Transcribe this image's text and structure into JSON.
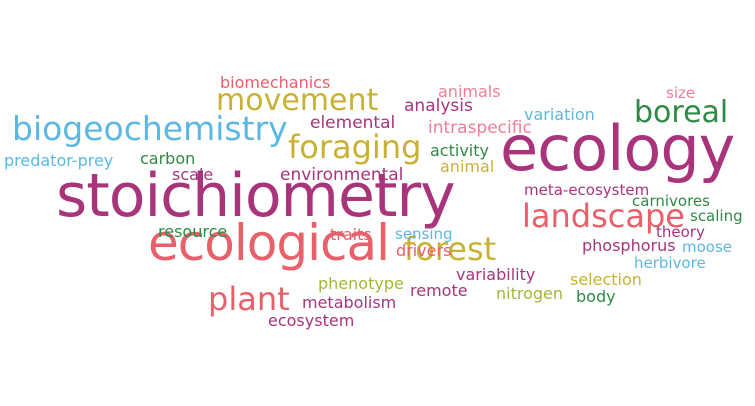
{
  "colors": {
    "magenta": "#a8347c",
    "coral": "#e8606a",
    "gold": "#c9b233",
    "sky": "#5bb8e3",
    "green": "#2f8a45",
    "pink": "#ef7f96",
    "lime": "#a3b839"
  },
  "words": [
    {
      "text": "stoichiometry",
      "color": "magenta"
    },
    {
      "text": "ecology",
      "color": "magenta"
    },
    {
      "text": "ecological",
      "color": "coral"
    },
    {
      "text": "biogeochemistry",
      "color": "sky"
    },
    {
      "text": "landscape",
      "color": "coral"
    },
    {
      "text": "movement",
      "color": "gold"
    },
    {
      "text": "foraging",
      "color": "gold"
    },
    {
      "text": "forest",
      "color": "gold"
    },
    {
      "text": "boreal",
      "color": "green"
    },
    {
      "text": "plant",
      "color": "coral"
    },
    {
      "text": "biomechanics",
      "color": "coral"
    },
    {
      "text": "elemental",
      "color": "magenta"
    },
    {
      "text": "analysis",
      "color": "magenta"
    },
    {
      "text": "animals",
      "color": "pink"
    },
    {
      "text": "intraspecific",
      "color": "pink"
    },
    {
      "text": "variation",
      "color": "sky"
    },
    {
      "text": "size",
      "color": "pink"
    },
    {
      "text": "predator-prey",
      "color": "sky"
    },
    {
      "text": "carbon",
      "color": "green"
    },
    {
      "text": "scale",
      "color": "magenta"
    },
    {
      "text": "environmental",
      "color": "magenta"
    },
    {
      "text": "activity",
      "color": "green"
    },
    {
      "text": "animal",
      "color": "gold"
    },
    {
      "text": "meta-ecosystem",
      "color": "magenta"
    },
    {
      "text": "carnivores",
      "color": "green"
    },
    {
      "text": "scaling",
      "color": "green"
    },
    {
      "text": "theory",
      "color": "magenta"
    },
    {
      "text": "resource",
      "color": "green"
    },
    {
      "text": "traits",
      "color": "coral"
    },
    {
      "text": "sensing",
      "color": "sky"
    },
    {
      "text": "drivers",
      "color": "coral"
    },
    {
      "text": "phosphorus",
      "color": "magenta"
    },
    {
      "text": "moose",
      "color": "sky"
    },
    {
      "text": "herbivore",
      "color": "sky"
    },
    {
      "text": "variability",
      "color": "magenta"
    },
    {
      "text": "phenotype",
      "color": "lime"
    },
    {
      "text": "selection",
      "color": "gold"
    },
    {
      "text": "remote",
      "color": "magenta"
    },
    {
      "text": "nitrogen",
      "color": "lime"
    },
    {
      "text": "body",
      "color": "green"
    },
    {
      "text": "metabolism",
      "color": "magenta"
    },
    {
      "text": "ecosystem",
      "color": "magenta"
    }
  ]
}
